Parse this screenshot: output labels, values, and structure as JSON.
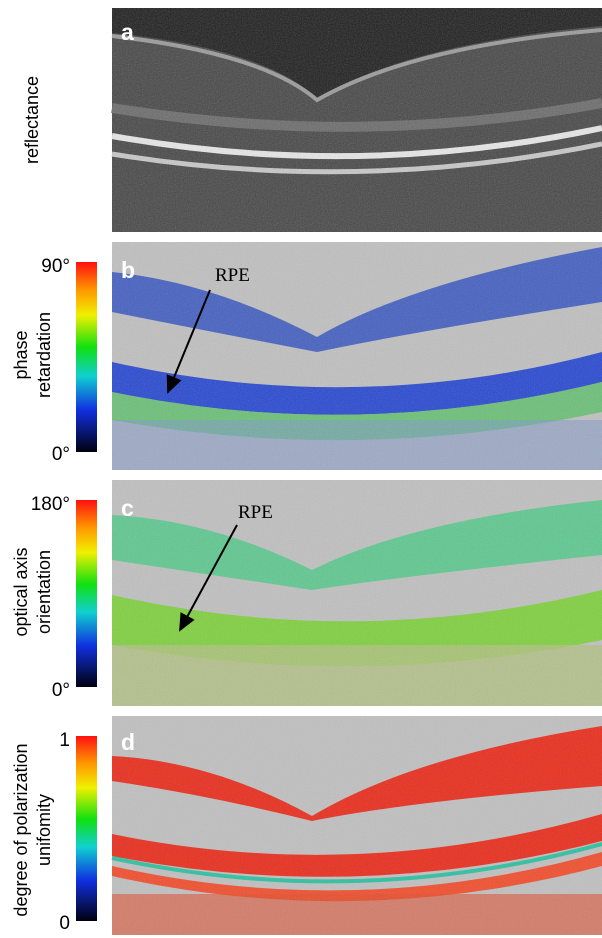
{
  "panels": [
    {
      "label": "a",
      "axis_title": [
        "reflectance"
      ]
    },
    {
      "label": "b",
      "axis_title": [
        "phase",
        "retardation"
      ],
      "scale_max": "90°",
      "scale_min": "0°",
      "annotation": "RPE"
    },
    {
      "label": "c",
      "axis_title": [
        "optical axis",
        "orientation"
      ],
      "scale_max": "180°",
      "scale_min": "0°",
      "annotation": "RPE"
    },
    {
      "label": "d",
      "axis_title": [
        "degree of polarization",
        "unifomity"
      ],
      "scale_max": "1",
      "scale_min": "0"
    }
  ]
}
